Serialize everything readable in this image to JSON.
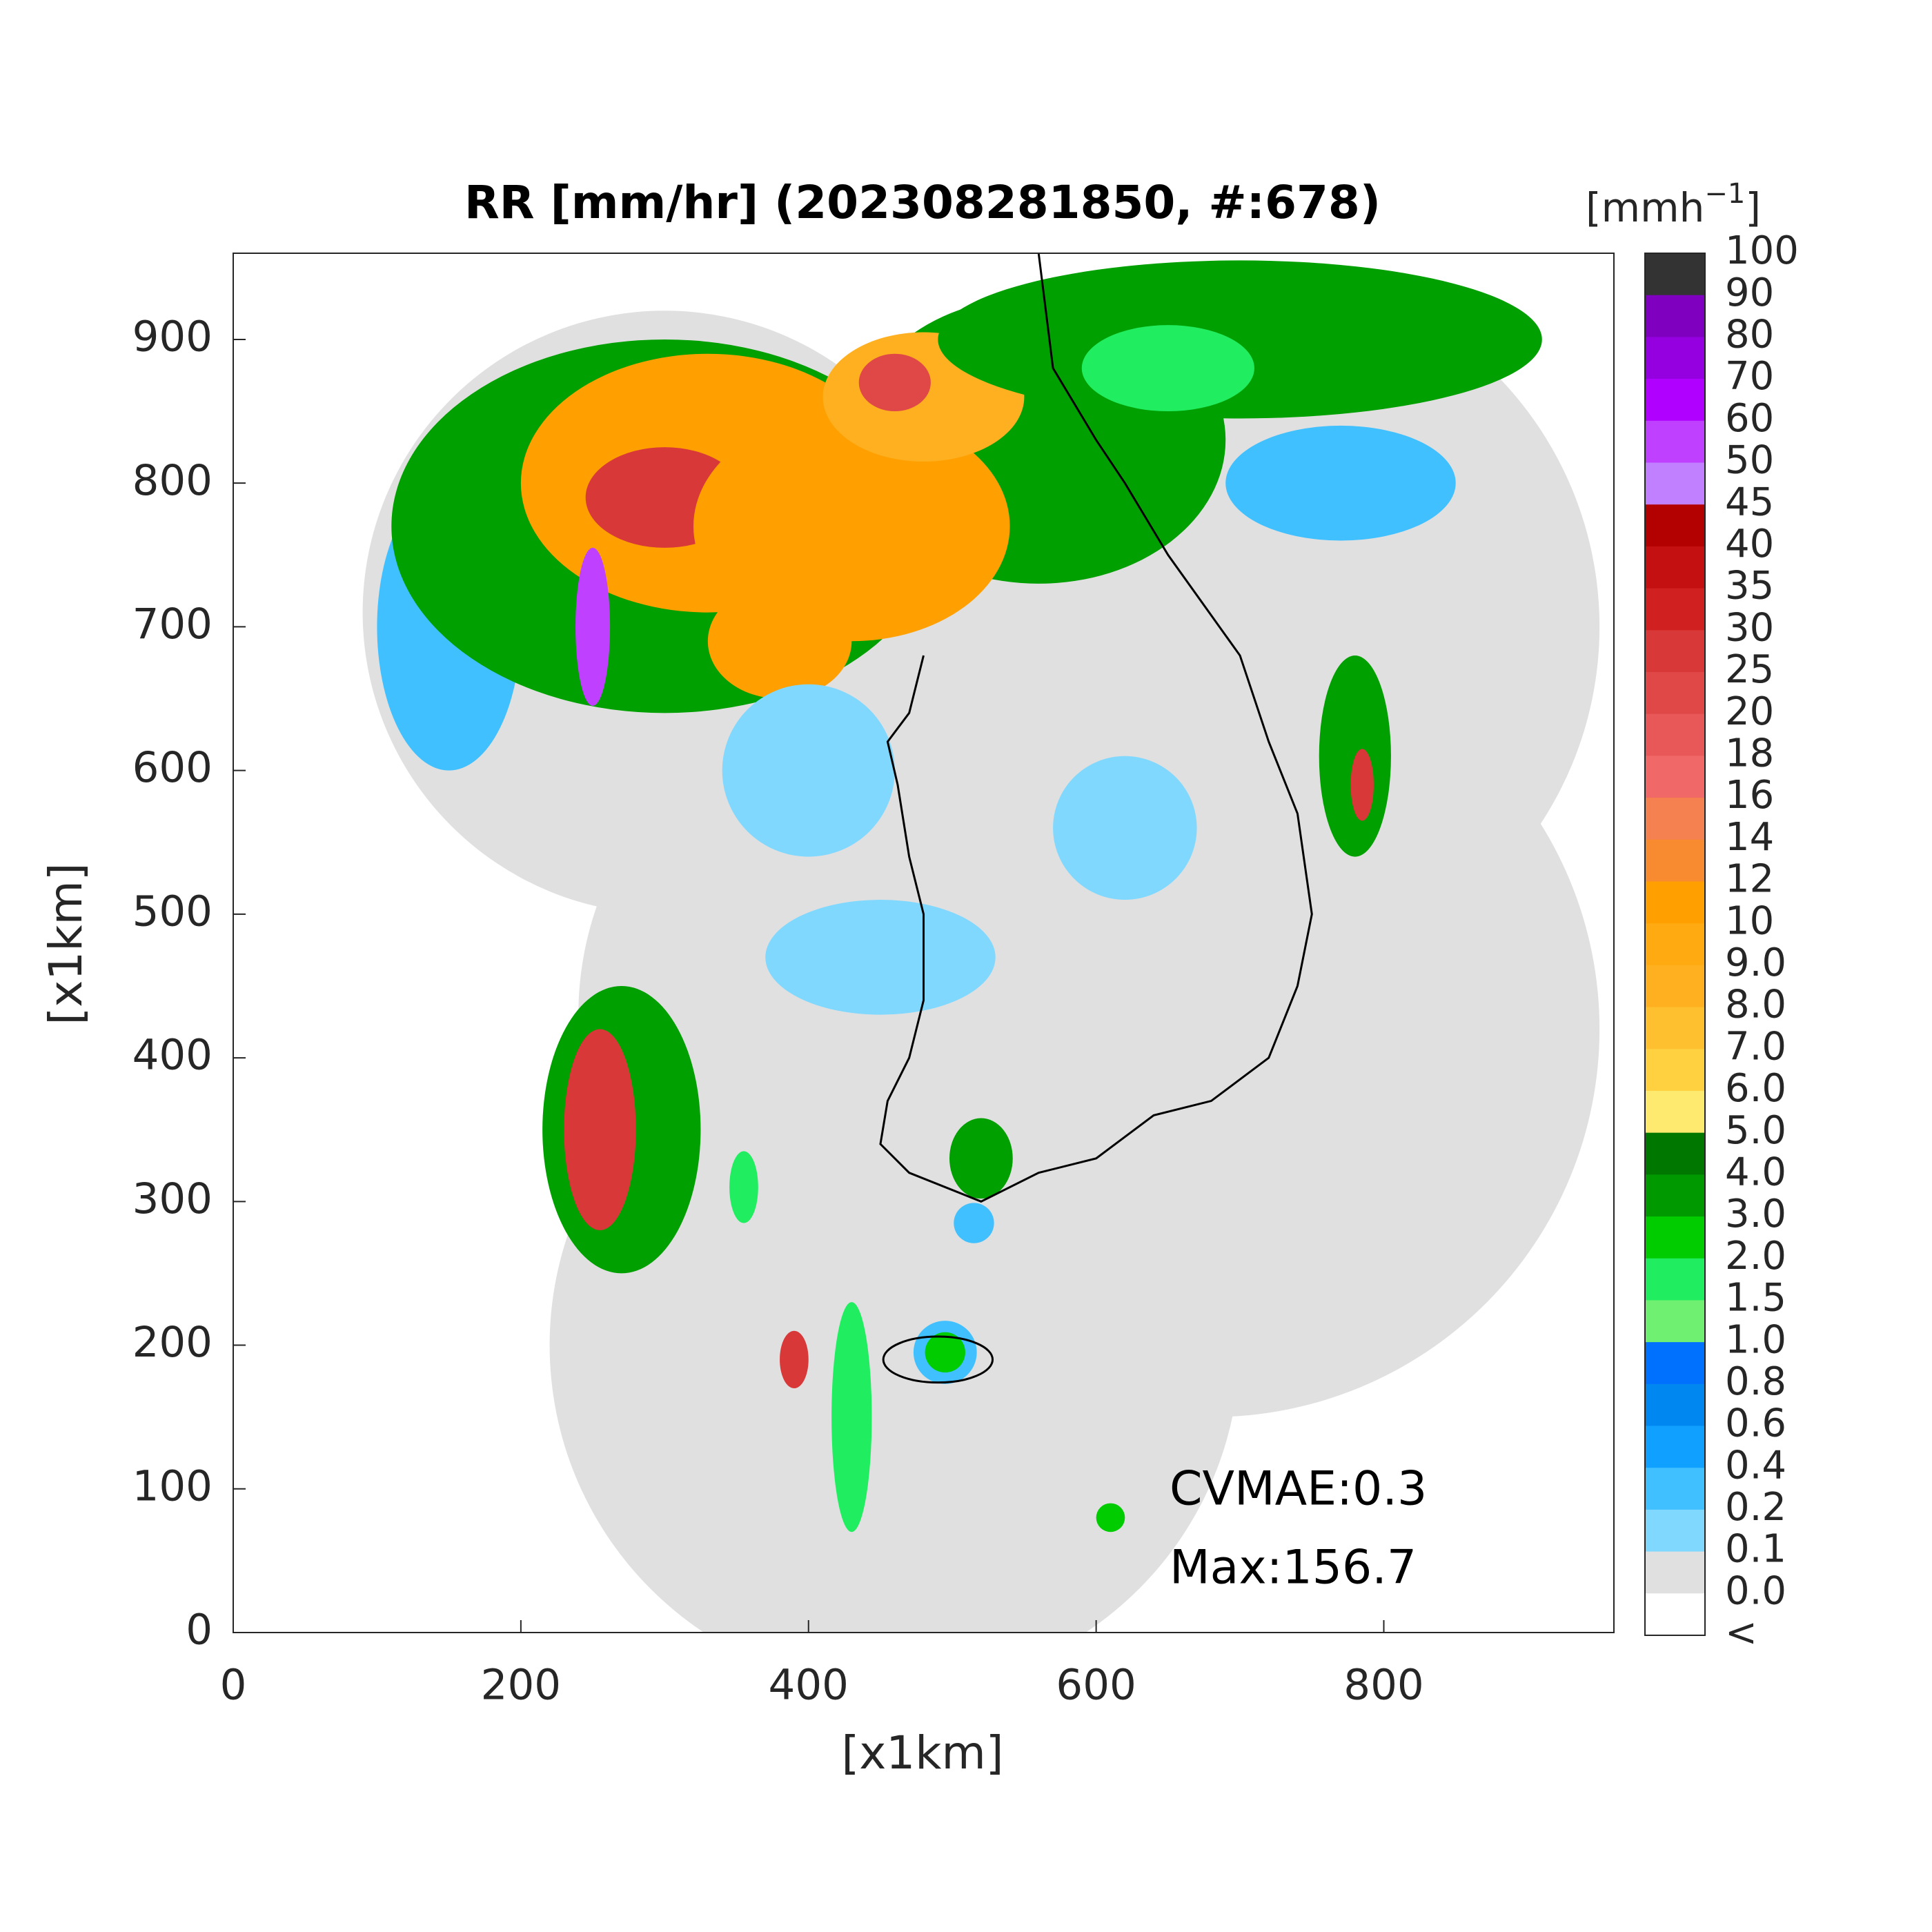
{
  "chart_data": {
    "type": "map",
    "title": "RR [mm/hr] (202308281850, #:678)",
    "xlabel": "[x1km]",
    "ylabel": "[x1km]",
    "xlim": [
      0,
      960
    ],
    "ylim": [
      0,
      960
    ],
    "xticks": [
      0,
      200,
      400,
      600,
      800
    ],
    "yticks": [
      0,
      100,
      200,
      300,
      400,
      500,
      600,
      700,
      800,
      900
    ],
    "colorbar": {
      "unit": {
        "base": "[mmh",
        "sup": "−1",
        "end": "]"
      },
      "labels": [
        "100",
        "90",
        "80",
        "70",
        "60",
        "50",
        "45",
        "40",
        "35",
        "30",
        "25",
        "20",
        "18",
        "16",
        "14",
        "12",
        "10",
        "9.0",
        "8.0",
        "7.0",
        "6.0",
        "5.0",
        "4.0",
        "3.0",
        "2.0",
        "1.5",
        "1.0",
        "0.8",
        "0.6",
        "0.4",
        "0.2",
        "0.1",
        "0.0",
        "<"
      ],
      "colors": [
        "#333333",
        "#8000c0",
        "#9500e0",
        "#b000ff",
        "#c040ff",
        "#c080ff",
        "#b30000",
        "#c41010",
        "#d02020",
        "#d83838",
        "#e04848",
        "#e85858",
        "#f06868",
        "#f58050",
        "#f88a30",
        "#ffa000",
        "#ffaa10",
        "#ffb020",
        "#ffc030",
        "#ffd040",
        "#ffea70",
        "#007800",
        "#009a00",
        "#00cc00",
        "#20ee60",
        "#70f070",
        "#0070ff",
        "#0088f0",
        "#10a0ff",
        "#40c0ff",
        "#80d8ff",
        "#e0e0e0",
        "#ffffff"
      ]
    },
    "annotations": [
      "CVMAE:0.3",
      "Max:156.7"
    ]
  }
}
